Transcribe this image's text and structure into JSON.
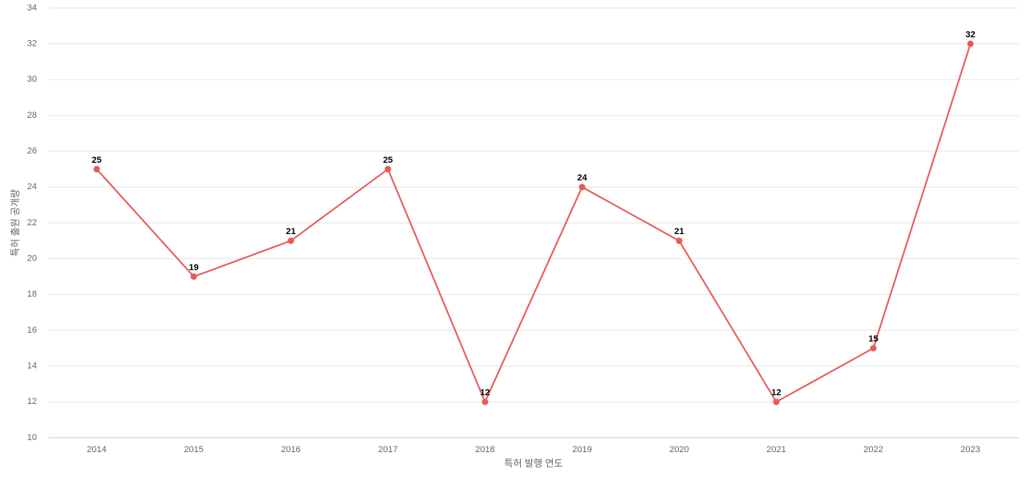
{
  "chart_data": {
    "type": "line",
    "x_label": "특허 발행 연도",
    "y_label": "특허 출원 공개량",
    "categories": [
      "2014",
      "2015",
      "2016",
      "2017",
      "2018",
      "2019",
      "2020",
      "2021",
      "2022",
      "2023"
    ],
    "series": [
      {
        "name": "특허 출원 공개량",
        "color": "#e85a5a",
        "values": [
          25,
          19,
          21,
          25,
          12,
          24,
          21,
          12,
          15,
          32
        ]
      }
    ],
    "ylim": [
      10,
      34
    ],
    "yticks": [
      10,
      12,
      14,
      16,
      18,
      20,
      22,
      24,
      26,
      28,
      30,
      32,
      34
    ],
    "grid": true
  }
}
